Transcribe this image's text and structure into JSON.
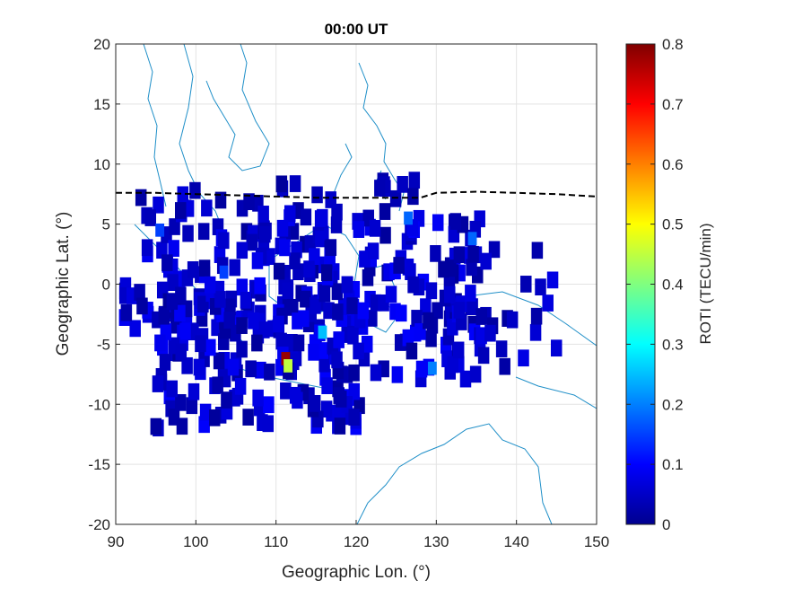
{
  "chart_data": {
    "type": "heatmap",
    "title": "00:00 UT",
    "xlabel": "Geographic Lon. (°)",
    "ylabel": "Geographic Lat. (°)",
    "xlim": [
      90,
      150
    ],
    "ylim": [
      -20,
      20
    ],
    "xticks": [
      "90",
      "100",
      "110",
      "120",
      "130",
      "140",
      "150"
    ],
    "yticks": [
      "20",
      "15",
      "10",
      "5",
      "0",
      "-5",
      "-10",
      "-15",
      "-20"
    ],
    "grid": true,
    "colorbar": {
      "label": "ROTI (TECU/min)",
      "colormap": "jet",
      "range": [
        0,
        0.8
      ],
      "ticks": [
        "0",
        "0.1",
        "0.2",
        "0.3",
        "0.4",
        "0.5",
        "0.6",
        "0.7",
        "0.8"
      ]
    },
    "magnetic_equator": {
      "style": "dashed-black",
      "points": [
        [
          90,
          7.6
        ],
        [
          95,
          7.6
        ],
        [
          100,
          7.5
        ],
        [
          105,
          7.4
        ],
        [
          110,
          7.3
        ],
        [
          115,
          7.2
        ],
        [
          120,
          7.2
        ],
        [
          125,
          7.2
        ],
        [
          128,
          7.2
        ],
        [
          130,
          7.6
        ],
        [
          135,
          7.7
        ],
        [
          140,
          7.6
        ],
        [
          145,
          7.5
        ],
        [
          150,
          7.3
        ]
      ]
    },
    "hotspots": [
      {
        "lon": 111.2,
        "lat": -6.2,
        "roti": 0.78
      },
      {
        "lon": 111.5,
        "lat": -6.8,
        "roti": 0.45
      },
      {
        "lon": 115.8,
        "lat": -4.0,
        "roti": 0.25
      },
      {
        "lon": 129.5,
        "lat": -7.0,
        "roti": 0.2
      },
      {
        "lon": 134.5,
        "lat": 3.8,
        "roti": 0.18
      },
      {
        "lon": 95.5,
        "lat": 4.5,
        "roti": 0.15
      },
      {
        "lon": 126.5,
        "lat": 5.5,
        "roti": 0.18
      },
      {
        "lon": 103.5,
        "lat": 1.0,
        "roti": 0.15
      }
    ],
    "coverage_clusters": [
      {
        "lon": [
          91,
          116
        ],
        "lat": [
          -4,
          8
        ],
        "count": 130,
        "roti_max": 0.09
      },
      {
        "lon": [
          95,
          122
        ],
        "lat": [
          -12,
          0
        ],
        "count": 170,
        "roti_max": 0.1
      },
      {
        "lon": [
          116,
          136
        ],
        "lat": [
          -8,
          6
        ],
        "count": 120,
        "roti_max": 0.1
      },
      {
        "lon": [
          130,
          145
        ],
        "lat": [
          -7,
          3
        ],
        "count": 35,
        "roti_max": 0.08
      },
      {
        "lon": [
          104,
          132
        ],
        "lat": [
          6,
          9
        ],
        "count": 14,
        "roti_max": 0.06
      }
    ]
  }
}
